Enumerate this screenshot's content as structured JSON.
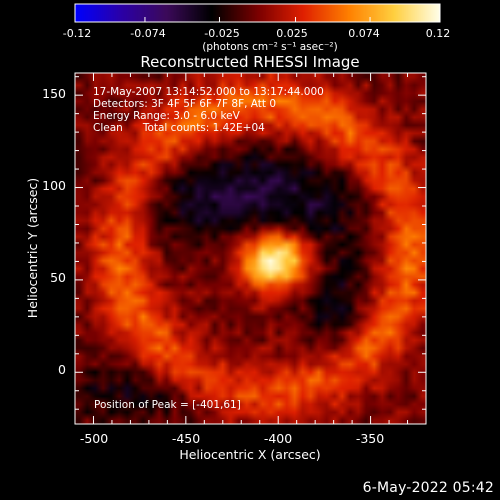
{
  "colorbar": {
    "ticks": [
      "-0.12",
      "-0.074",
      "-0.025",
      "0.025",
      "0.074",
      "0.12"
    ],
    "unit_label": "(photons cm⁻² s⁻¹ asec⁻²)"
  },
  "header": {
    "title": "Reconstructed RHESSI Image"
  },
  "info": {
    "line1": "17-May-2007 13:14:52.000 to 13:17:44.000",
    "line2": "Detectors: 3F 4F 5F 6F 7F 8F, Att 0",
    "line3": "Energy Range: 3.0 - 6.0 keV",
    "line4": "Clean      Total counts: 1.42E+04",
    "peak": "Position of Peak = [-401,61]"
  },
  "axes": {
    "xlabel": "Heliocentric X (arcsec)",
    "ylabel": "Heliocentric Y (arcsec)",
    "xticks": [
      "-500",
      "-450",
      "-400",
      "-350"
    ],
    "yticks": [
      "0",
      "50",
      "100",
      "150"
    ]
  },
  "footer": {
    "date": "6-May-2022 05:42"
  },
  "chart_data": {
    "type": "heatmap",
    "title": "Reconstructed RHESSI Image",
    "xlabel": "Heliocentric X (arcsec)",
    "ylabel": "Heliocentric Y (arcsec)",
    "xlim": [
      -510,
      -320
    ],
    "ylim": [
      -28,
      162
    ],
    "xticks": [
      -500,
      -450,
      -400,
      -350
    ],
    "yticks": [
      0,
      50,
      100,
      150
    ],
    "colorbar_range": [
      -0.12,
      0.12
    ],
    "colorbar_ticks": [
      -0.12,
      -0.074,
      -0.025,
      0.025,
      0.074,
      0.12
    ],
    "colormap": [
      "#0000ff",
      "#2b00a8",
      "#3c0a5a",
      "#000000",
      "#7a0000",
      "#e02000",
      "#ff8000",
      "#ffd040",
      "#ffffe8"
    ],
    "peak": [
      -401,
      61
    ],
    "peak_value": 0.12,
    "components": [
      {
        "shape": "source",
        "center": [
          -401,
          61
        ],
        "sigma": [
          14,
          11
        ],
        "amplitude": 0.12
      },
      {
        "shape": "ring",
        "center": [
          -408,
          67
        ],
        "radius": 78,
        "width": 16,
        "amplitude": 0.05
      },
      {
        "shape": "dip",
        "center": [
          -415,
          95
        ],
        "sigma": [
          45,
          18
        ],
        "amplitude": -0.05
      },
      {
        "shape": "dip",
        "center": [
          -370,
          40
        ],
        "sigma": [
          14,
          25
        ],
        "amplitude": -0.035
      },
      {
        "shape": "dip",
        "center": [
          -470,
          -10
        ],
        "sigma": [
          40,
          12
        ],
        "amplitude": -0.03
      }
    ]
  }
}
